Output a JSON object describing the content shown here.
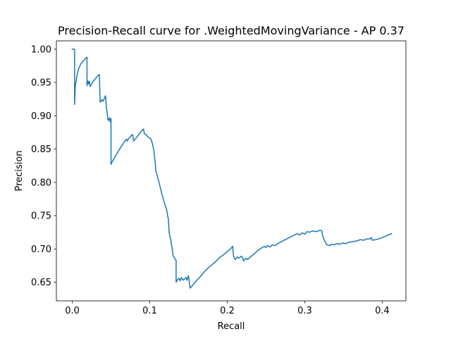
{
  "chart_data": {
    "type": "line",
    "title": "Precision-Recall curve for .WeightedMovingVariance - AP 0.37",
    "xlabel": "Recall",
    "ylabel": "Precision",
    "xlim": [
      -0.0205,
      0.4305
    ],
    "ylim": [
      0.622,
      1.0125
    ],
    "x_ticks": [
      {
        "value": 0.0,
        "label": "0.0"
      },
      {
        "value": 0.1,
        "label": "0.1"
      },
      {
        "value": 0.2,
        "label": "0.2"
      },
      {
        "value": 0.3,
        "label": "0.3"
      },
      {
        "value": 0.4,
        "label": "0.4"
      }
    ],
    "y_ticks": [
      {
        "value": 0.65,
        "label": "0.65"
      },
      {
        "value": 0.7,
        "label": "0.70"
      },
      {
        "value": 0.75,
        "label": "0.75"
      },
      {
        "value": 0.8,
        "label": "0.80"
      },
      {
        "value": 0.85,
        "label": "0.85"
      },
      {
        "value": 0.9,
        "label": "0.90"
      },
      {
        "value": 0.95,
        "label": "0.95"
      },
      {
        "value": 1.0,
        "label": "1.00"
      }
    ],
    "grid": false,
    "legend": "none",
    "series": [
      {
        "color": "#1f77b4",
        "points": [
          [
            0.0,
            1.0
          ],
          [
            0.003,
            1.0
          ],
          [
            0.003,
            0.917
          ],
          [
            0.004,
            0.945
          ],
          [
            0.006,
            0.96
          ],
          [
            0.008,
            0.97
          ],
          [
            0.011,
            0.978
          ],
          [
            0.014,
            0.982
          ],
          [
            0.017,
            0.986
          ],
          [
            0.019,
            0.988
          ],
          [
            0.019,
            0.945
          ],
          [
            0.02,
            0.952
          ],
          [
            0.021,
            0.948
          ],
          [
            0.022,
            0.952
          ],
          [
            0.023,
            0.944
          ],
          [
            0.026,
            0.95
          ],
          [
            0.03,
            0.956
          ],
          [
            0.033,
            0.96
          ],
          [
            0.035,
            0.962
          ],
          [
            0.036,
            0.92
          ],
          [
            0.038,
            0.924
          ],
          [
            0.04,
            0.922
          ],
          [
            0.042,
            0.928
          ],
          [
            0.043,
            0.93
          ],
          [
            0.044,
            0.912
          ],
          [
            0.045,
            0.905
          ],
          [
            0.046,
            0.894
          ],
          [
            0.047,
            0.893
          ],
          [
            0.048,
            0.897
          ],
          [
            0.049,
            0.891
          ],
          [
            0.05,
            0.896
          ],
          [
            0.05,
            0.827
          ],
          [
            0.052,
            0.832
          ],
          [
            0.055,
            0.838
          ],
          [
            0.06,
            0.848
          ],
          [
            0.065,
            0.857
          ],
          [
            0.068,
            0.862
          ],
          [
            0.07,
            0.865
          ],
          [
            0.071,
            0.862
          ],
          [
            0.073,
            0.866
          ],
          [
            0.076,
            0.87
          ],
          [
            0.078,
            0.872
          ],
          [
            0.079,
            0.862
          ],
          [
            0.082,
            0.866
          ],
          [
            0.086,
            0.872
          ],
          [
            0.09,
            0.878
          ],
          [
            0.092,
            0.88
          ],
          [
            0.093,
            0.873
          ],
          [
            0.095,
            0.872
          ],
          [
            0.097,
            0.869
          ],
          [
            0.099,
            0.867
          ],
          [
            0.101,
            0.866
          ],
          [
            0.103,
            0.86
          ],
          [
            0.104,
            0.855
          ],
          [
            0.105,
            0.85
          ],
          [
            0.106,
            0.84
          ],
          [
            0.107,
            0.83
          ],
          [
            0.108,
            0.817
          ],
          [
            0.11,
            0.808
          ],
          [
            0.112,
            0.8
          ],
          [
            0.114,
            0.79
          ],
          [
            0.116,
            0.781
          ],
          [
            0.118,
            0.773
          ],
          [
            0.12,
            0.765
          ],
          [
            0.122,
            0.758
          ],
          [
            0.123,
            0.75
          ],
          [
            0.124,
            0.745
          ],
          [
            0.125,
            0.725
          ],
          [
            0.126,
            0.718
          ],
          [
            0.127,
            0.715
          ],
          [
            0.128,
            0.707
          ],
          [
            0.129,
            0.7
          ],
          [
            0.13,
            0.69
          ],
          [
            0.132,
            0.686
          ],
          [
            0.134,
            0.683
          ],
          [
            0.134,
            0.65
          ],
          [
            0.136,
            0.654
          ],
          [
            0.138,
            0.656
          ],
          [
            0.139,
            0.652
          ],
          [
            0.141,
            0.657
          ],
          [
            0.143,
            0.653
          ],
          [
            0.145,
            0.655
          ],
          [
            0.147,
            0.657
          ],
          [
            0.148,
            0.653
          ],
          [
            0.15,
            0.66
          ],
          [
            0.151,
            0.65
          ],
          [
            0.152,
            0.641
          ],
          [
            0.155,
            0.645
          ],
          [
            0.16,
            0.652
          ],
          [
            0.165,
            0.658
          ],
          [
            0.17,
            0.665
          ],
          [
            0.175,
            0.671
          ],
          [
            0.18,
            0.676
          ],
          [
            0.185,
            0.681
          ],
          [
            0.19,
            0.687
          ],
          [
            0.195,
            0.691
          ],
          [
            0.2,
            0.696
          ],
          [
            0.205,
            0.701
          ],
          [
            0.207,
            0.704
          ],
          [
            0.208,
            0.69
          ],
          [
            0.21,
            0.684
          ],
          [
            0.213,
            0.688
          ],
          [
            0.215,
            0.686
          ],
          [
            0.218,
            0.689
          ],
          [
            0.22,
            0.687
          ],
          [
            0.221,
            0.682
          ],
          [
            0.224,
            0.686
          ],
          [
            0.226,
            0.684
          ],
          [
            0.23,
            0.688
          ],
          [
            0.235,
            0.693
          ],
          [
            0.24,
            0.698
          ],
          [
            0.245,
            0.702
          ],
          [
            0.248,
            0.704
          ],
          [
            0.25,
            0.702
          ],
          [
            0.252,
            0.705
          ],
          [
            0.255,
            0.703
          ],
          [
            0.258,
            0.706
          ],
          [
            0.262,
            0.705
          ],
          [
            0.265,
            0.708
          ],
          [
            0.27,
            0.711
          ],
          [
            0.275,
            0.714
          ],
          [
            0.28,
            0.717
          ],
          [
            0.285,
            0.72
          ],
          [
            0.29,
            0.723
          ],
          [
            0.293,
            0.721
          ],
          [
            0.297,
            0.724
          ],
          [
            0.3,
            0.722
          ],
          [
            0.303,
            0.726
          ],
          [
            0.306,
            0.725
          ],
          [
            0.31,
            0.727
          ],
          [
            0.315,
            0.726
          ],
          [
            0.32,
            0.728
          ],
          [
            0.322,
            0.727
          ],
          [
            0.323,
            0.72
          ],
          [
            0.325,
            0.714
          ],
          [
            0.327,
            0.709
          ],
          [
            0.329,
            0.706
          ],
          [
            0.332,
            0.705
          ],
          [
            0.335,
            0.707
          ],
          [
            0.338,
            0.706
          ],
          [
            0.341,
            0.708
          ],
          [
            0.345,
            0.707
          ],
          [
            0.349,
            0.709
          ],
          [
            0.353,
            0.708
          ],
          [
            0.357,
            0.71
          ],
          [
            0.362,
            0.711
          ],
          [
            0.367,
            0.712
          ],
          [
            0.372,
            0.714
          ],
          [
            0.376,
            0.713
          ],
          [
            0.38,
            0.715
          ],
          [
            0.384,
            0.715
          ],
          [
            0.386,
            0.717
          ],
          [
            0.387,
            0.713
          ],
          [
            0.392,
            0.714
          ],
          [
            0.398,
            0.716
          ],
          [
            0.404,
            0.719
          ],
          [
            0.408,
            0.721
          ],
          [
            0.412,
            0.723
          ]
        ]
      }
    ]
  }
}
